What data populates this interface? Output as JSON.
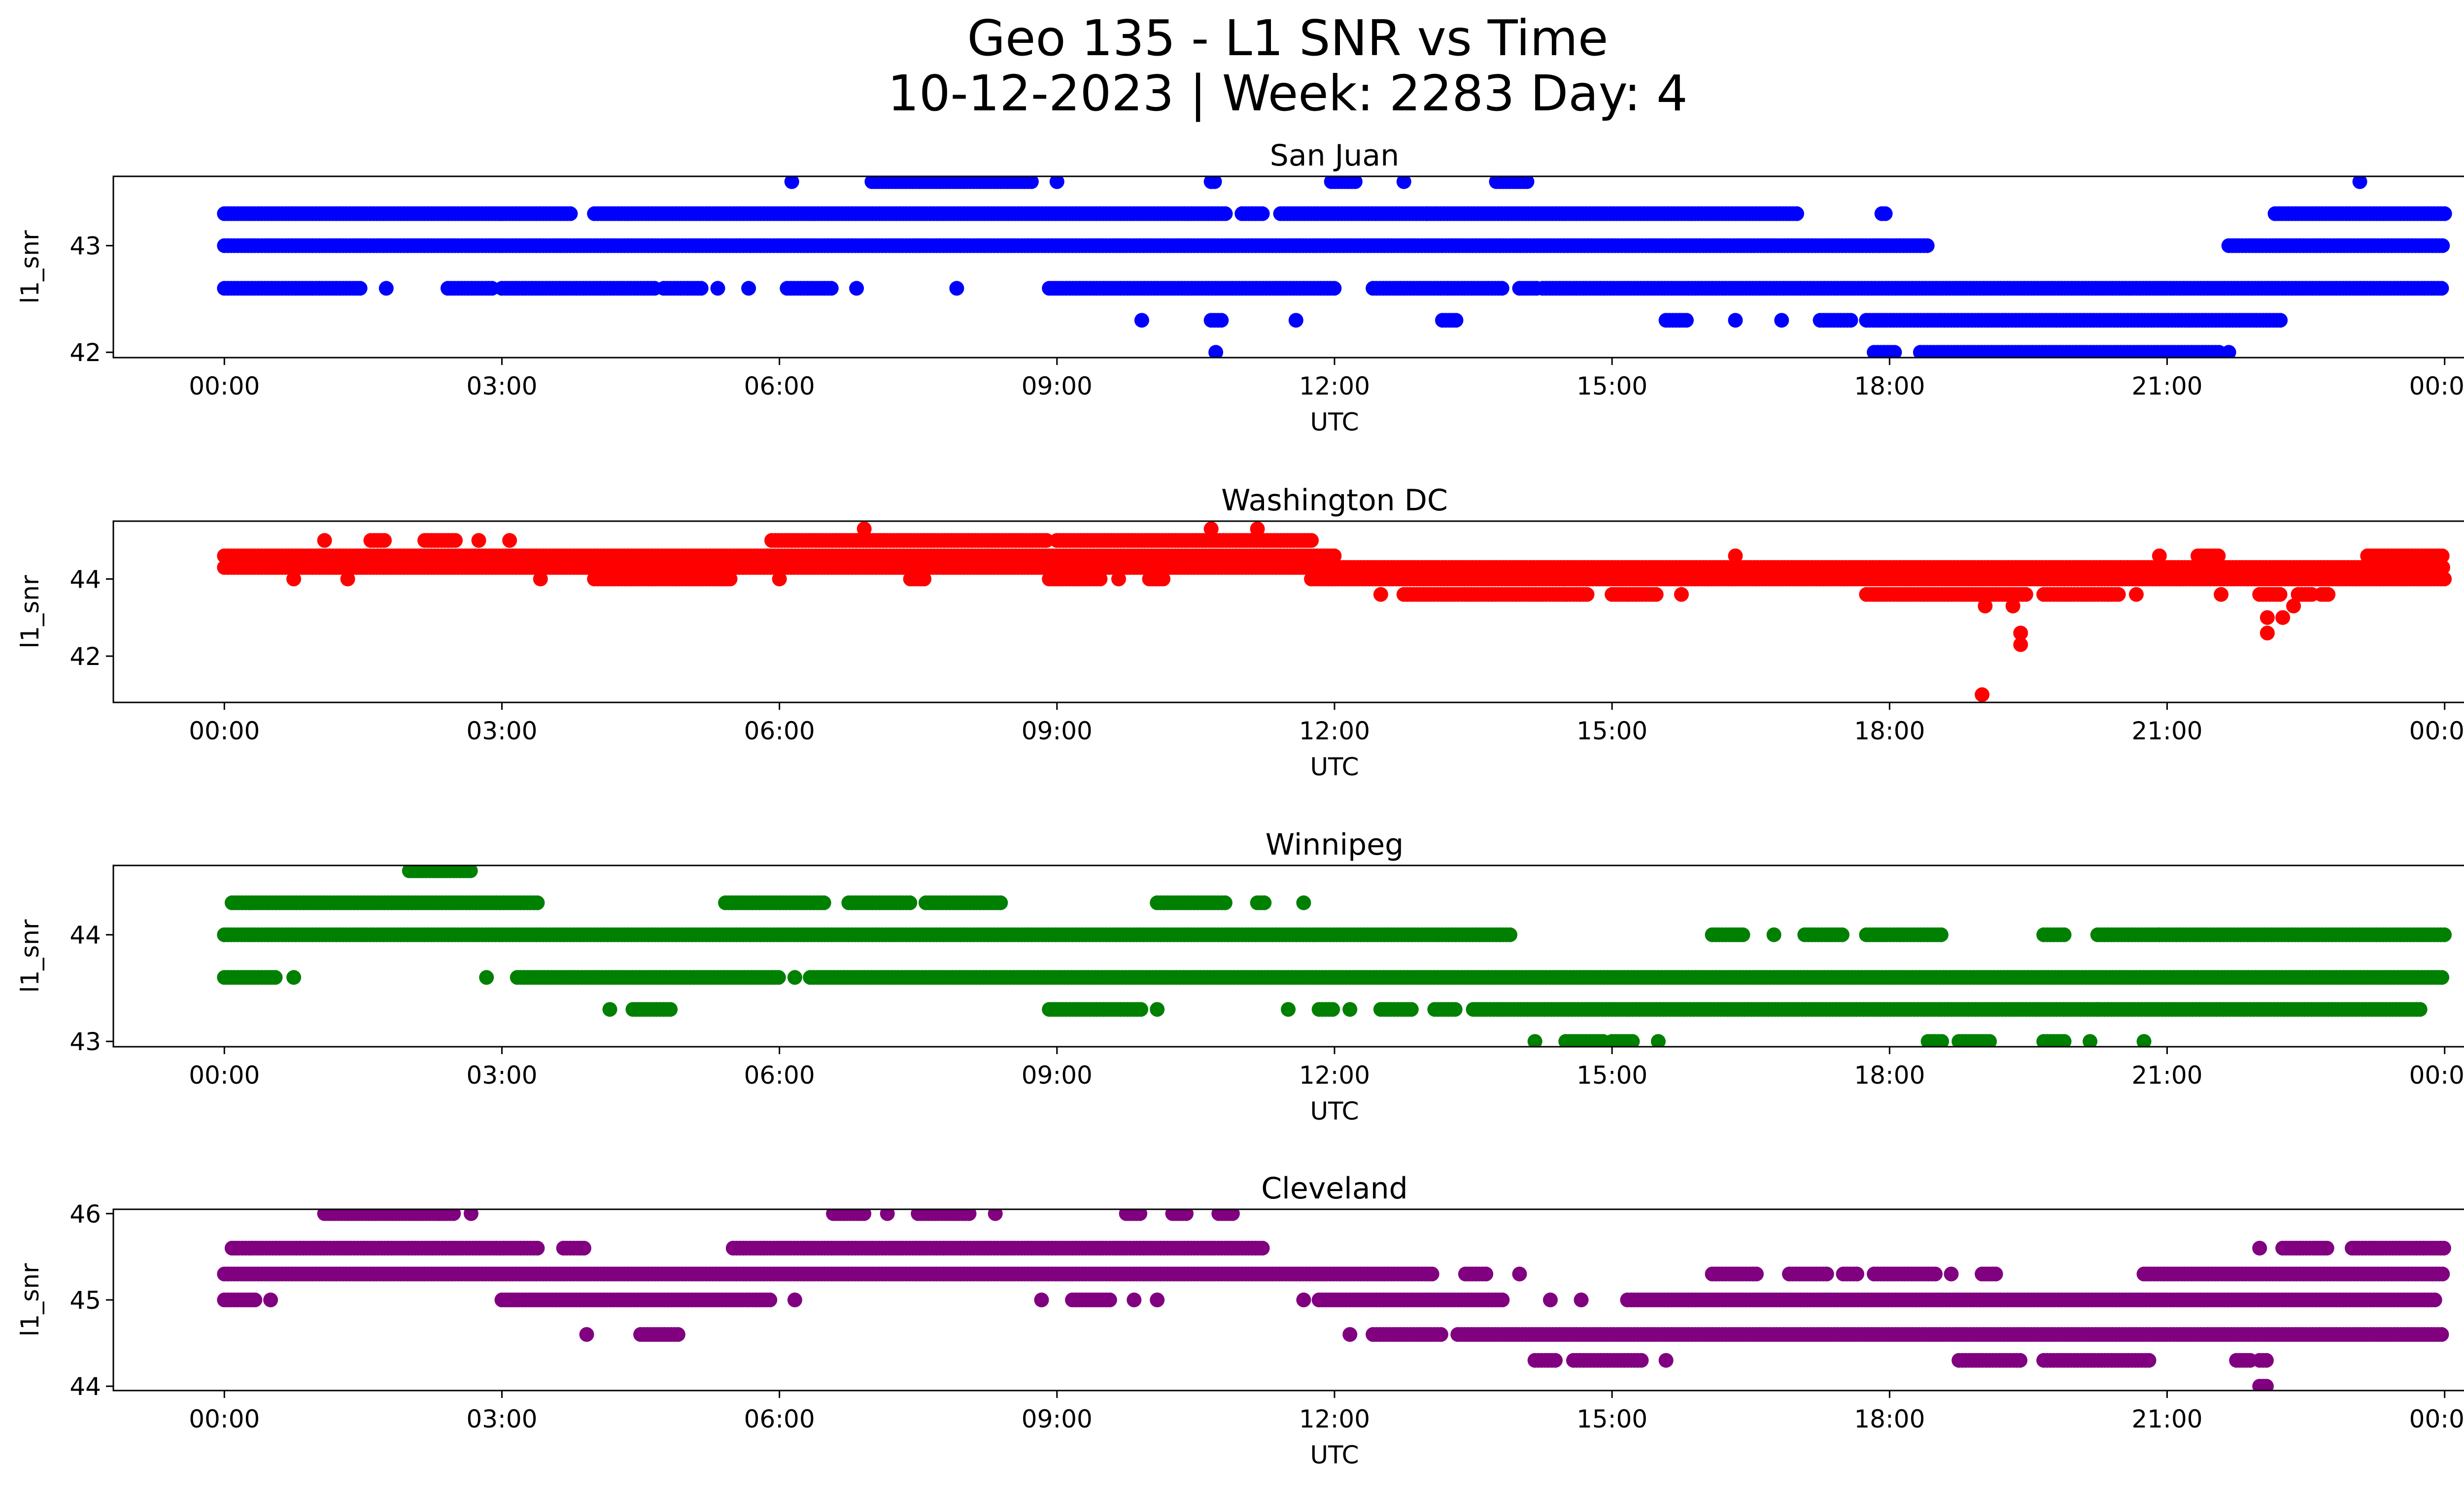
{
  "figure": {
    "title_line1": "Geo 135 - L1 SNR vs Time",
    "title_line2": "10-12-2023 | Week: 2283 Day: 4"
  },
  "chart_data": [
    {
      "type": "scatter",
      "title": "San Juan",
      "xlabel": "UTC",
      "ylabel": "l1_snr",
      "color": "#0000ff",
      "xlim": [
        "00:00",
        "24:00"
      ],
      "x_ticks": [
        "00:00",
        "03:00",
        "06:00",
        "09:00",
        "12:00",
        "15:00",
        "18:00",
        "21:00",
        "00:00"
      ],
      "ylim": [
        41.95,
        43.65
      ],
      "y_ticks": [
        42,
        43
      ],
      "levels": [
        {
          "y": 43.6,
          "runs": [
            [
              "06:08",
              "06:10"
            ],
            [
              "07:00",
              "08:45"
            ],
            [
              "09:00",
              "09:02"
            ],
            [
              "10:40",
              "10:43"
            ],
            [
              "11:58",
              "12:14"
            ],
            [
              "12:45",
              "12:47"
            ],
            [
              "13:45",
              "14:05"
            ],
            [
              "23:05",
              "23:07"
            ]
          ]
        },
        {
          "y": 43.3,
          "runs": [
            [
              "00:00",
              "03:45"
            ],
            [
              "04:00",
              "10:50"
            ],
            [
              "11:00",
              "11:15"
            ],
            [
              "11:25",
              "13:00"
            ],
            [
              "13:00",
              "17:00"
            ],
            [
              "17:55",
              "17:58"
            ],
            [
              "22:10",
              "24:00"
            ]
          ]
        },
        {
          "y": 43.0,
          "runs": [
            [
              "00:00",
              "18:25"
            ],
            [
              "21:40",
              "24:00"
            ]
          ]
        },
        {
          "y": 42.6,
          "runs": [
            [
              "00:00",
              "01:30"
            ],
            [
              "01:45",
              "01:47"
            ],
            [
              "02:25",
              "02:55"
            ],
            [
              "03:00",
              "04:40"
            ],
            [
              "04:45",
              "05:10"
            ],
            [
              "05:20",
              "05:22"
            ],
            [
              "05:40",
              "05:42"
            ],
            [
              "06:05",
              "06:35"
            ],
            [
              "06:50",
              "06:52"
            ],
            [
              "07:55",
              "07:57"
            ],
            [
              "08:55",
              "12:00"
            ],
            [
              "12:25",
              "13:50"
            ],
            [
              "14:00",
              "14:12"
            ],
            [
              "14:15",
              "24:00"
            ]
          ]
        },
        {
          "y": 42.3,
          "runs": [
            [
              "09:55",
              "09:57"
            ],
            [
              "10:40",
              "10:47"
            ],
            [
              "11:35",
              "11:37"
            ],
            [
              "13:10",
              "13:20"
            ],
            [
              "15:35",
              "15:50"
            ],
            [
              "16:20",
              "16:22"
            ],
            [
              "16:50",
              "16:52"
            ],
            [
              "17:15",
              "17:35"
            ],
            [
              "17:45",
              "22:15"
            ]
          ]
        },
        {
          "y": 42.0,
          "runs": [
            [
              "10:43",
              "10:45"
            ],
            [
              "17:50",
              "18:05"
            ],
            [
              "18:20",
              "21:35"
            ],
            [
              "21:40",
              "21:42"
            ]
          ]
        }
      ],
      "outliers": []
    },
    {
      "type": "scatter",
      "title": "Washington DC",
      "xlabel": "UTC",
      "ylabel": "l1_snr",
      "color": "#ff0000",
      "xlim": [
        "00:00",
        "24:00"
      ],
      "x_ticks": [
        "00:00",
        "03:00",
        "06:00",
        "09:00",
        "12:00",
        "15:00",
        "18:00",
        "21:00",
        "00:00"
      ],
      "ylim": [
        40.8,
        45.5
      ],
      "y_ticks": [
        42,
        44
      ],
      "levels": [
        {
          "y": 45.3,
          "runs": [
            [
              "06:55",
              "06:57"
            ],
            [
              "10:40",
              "10:42"
            ],
            [
              "11:10",
              "11:12"
            ]
          ]
        },
        {
          "y": 45.0,
          "runs": [
            [
              "01:05",
              "01:07"
            ],
            [
              "01:35",
              "01:45"
            ],
            [
              "02:10",
              "02:30"
            ],
            [
              "02:45",
              "02:47"
            ],
            [
              "03:05",
              "03:07"
            ],
            [
              "05:55",
              "08:55"
            ],
            [
              "09:00",
              "11:45"
            ]
          ]
        },
        {
          "y": 44.6,
          "runs": [
            [
              "00:00",
              "05:15"
            ],
            [
              "05:15",
              "12:00"
            ],
            [
              "16:20",
              "16:22"
            ],
            [
              "20:55",
              "20:57"
            ],
            [
              "21:20",
              "21:35"
            ],
            [
              "23:10",
              "24:00"
            ]
          ]
        },
        {
          "y": 44.3,
          "runs": [
            [
              "00:00",
              "24:00"
            ]
          ]
        },
        {
          "y": 44.0,
          "runs": [
            [
              "00:45",
              "00:47"
            ],
            [
              "01:20",
              "01:22"
            ],
            [
              "03:25",
              "03:27"
            ],
            [
              "04:00",
              "05:30"
            ],
            [
              "06:00",
              "06:02"
            ],
            [
              "07:25",
              "07:35"
            ],
            [
              "08:55",
              "09:30"
            ],
            [
              "09:40",
              "09:42"
            ],
            [
              "10:00",
              "10:10"
            ],
            [
              "11:45",
              "24:00"
            ]
          ]
        },
        {
          "y": 43.6,
          "runs": [
            [
              "12:30",
              "12:32"
            ],
            [
              "12:45",
              "14:45"
            ],
            [
              "15:00",
              "15:30"
            ],
            [
              "15:45",
              "15:47"
            ],
            [
              "17:45",
              "19:30"
            ],
            [
              "19:40",
              "20:30"
            ],
            [
              "20:40",
              "20:42"
            ],
            [
              "21:35",
              "21:37"
            ],
            [
              "22:00",
              "22:15"
            ],
            [
              "22:25",
              "22:35"
            ],
            [
              "22:40",
              "22:45"
            ]
          ]
        }
      ],
      "outliers": [
        {
          "x": "19:00",
          "y": 41.0
        },
        {
          "x": "19:25",
          "y": 42.3
        },
        {
          "x": "19:25",
          "y": 42.6
        },
        {
          "x": "19:20",
          "y": 43.3
        },
        {
          "x": "19:02",
          "y": 43.3
        },
        {
          "x": "22:05",
          "y": 42.6
        },
        {
          "x": "22:05",
          "y": 43.0
        },
        {
          "x": "22:15",
          "y": 43.0
        },
        {
          "x": "22:22",
          "y": 43.3
        }
      ]
    },
    {
      "type": "scatter",
      "title": "Winnipeg",
      "xlabel": "UTC",
      "ylabel": "l1_snr",
      "color": "#008000",
      "xlim": [
        "00:00",
        "24:00"
      ],
      "x_ticks": [
        "00:00",
        "03:00",
        "06:00",
        "09:00",
        "12:00",
        "15:00",
        "18:00",
        "21:00",
        "00:00"
      ],
      "ylim": [
        42.95,
        44.65
      ],
      "y_ticks": [
        43,
        44
      ],
      "levels": [
        {
          "y": 44.6,
          "runs": [
            [
              "02:00",
              "02:40"
            ]
          ]
        },
        {
          "y": 44.3,
          "runs": [
            [
              "00:05",
              "03:25"
            ],
            [
              "05:25",
              "06:30"
            ],
            [
              "06:45",
              "07:25"
            ],
            [
              "07:35",
              "08:25"
            ],
            [
              "10:05",
              "10:50"
            ],
            [
              "11:10",
              "11:15"
            ],
            [
              "11:40",
              "11:42"
            ]
          ]
        },
        {
          "y": 44.0,
          "runs": [
            [
              "00:00",
              "13:55"
            ],
            [
              "16:05",
              "16:25"
            ],
            [
              "16:45",
              "16:47"
            ],
            [
              "17:05",
              "17:30"
            ],
            [
              "17:45",
              "18:35"
            ],
            [
              "19:40",
              "19:55"
            ],
            [
              "20:15",
              "20:55"
            ],
            [
              "20:55",
              "24:00"
            ]
          ]
        },
        {
          "y": 43.6,
          "runs": [
            [
              "00:00",
              "00:35"
            ],
            [
              "00:45",
              "00:47"
            ],
            [
              "02:50",
              "02:52"
            ],
            [
              "03:10",
              "06:00"
            ],
            [
              "06:10",
              "06:12"
            ],
            [
              "06:20",
              "24:00"
            ]
          ]
        },
        {
          "y": 43.3,
          "runs": [
            [
              "04:10",
              "04:12"
            ],
            [
              "04:25",
              "04:50"
            ],
            [
              "08:55",
              "09:55"
            ],
            [
              "10:05",
              "10:07"
            ],
            [
              "11:30",
              "11:32"
            ],
            [
              "11:50",
              "12:00"
            ],
            [
              "12:10",
              "12:12"
            ],
            [
              "12:30",
              "12:50"
            ],
            [
              "13:05",
              "13:20"
            ],
            [
              "13:30",
              "20:15"
            ],
            [
              "20:15",
              "23:45"
            ]
          ]
        },
        {
          "y": 43.0,
          "runs": [
            [
              "14:10",
              "14:12"
            ],
            [
              "14:30",
              "14:55"
            ],
            [
              "15:00",
              "15:15"
            ],
            [
              "15:30",
              "15:32"
            ],
            [
              "18:25",
              "18:35"
            ],
            [
              "18:45",
              "19:05"
            ],
            [
              "19:40",
              "19:55"
            ],
            [
              "20:10",
              "20:12"
            ],
            [
              "20:45",
              "20:47"
            ]
          ]
        }
      ],
      "outliers": []
    },
    {
      "type": "scatter",
      "title": "Cleveland",
      "xlabel": "UTC",
      "ylabel": "l1_snr",
      "color": "#800080",
      "xlim": [
        "00:00",
        "24:00"
      ],
      "x_ticks": [
        "00:00",
        "03:00",
        "06:00",
        "09:00",
        "12:00",
        "15:00",
        "18:00",
        "21:00",
        "00:00"
      ],
      "ylim": [
        43.95,
        46.05
      ],
      "y_ticks": [
        44,
        45,
        46
      ],
      "levels": [
        {
          "y": 46.0,
          "runs": [
            [
              "01:05",
              "02:30"
            ],
            [
              "02:40",
              "02:42"
            ],
            [
              "06:35",
              "06:55"
            ],
            [
              "07:10",
              "07:12"
            ],
            [
              "07:30",
              "08:05"
            ],
            [
              "08:20",
              "08:22"
            ],
            [
              "09:45",
              "09:55"
            ],
            [
              "10:15",
              "10:25"
            ],
            [
              "10:45",
              "10:55"
            ]
          ]
        },
        {
          "y": 45.6,
          "runs": [
            [
              "00:05",
              "03:25"
            ],
            [
              "03:40",
              "03:55"
            ],
            [
              "05:30",
              "11:15"
            ],
            [
              "22:00",
              "22:02"
            ],
            [
              "22:15",
              "22:45"
            ],
            [
              "23:00",
              "24:00"
            ]
          ]
        },
        {
          "y": 45.3,
          "runs": [
            [
              "00:00",
              "13:05"
            ],
            [
              "13:25",
              "13:40"
            ],
            [
              "14:00",
              "14:02"
            ],
            [
              "16:05",
              "16:35"
            ],
            [
              "16:55",
              "17:20"
            ],
            [
              "17:30",
              "17:40"
            ],
            [
              "17:50",
              "18:30"
            ],
            [
              "18:40",
              "18:42"
            ],
            [
              "19:00",
              "19:10"
            ],
            [
              "20:45",
              "24:00"
            ]
          ]
        },
        {
          "y": 45.0,
          "runs": [
            [
              "00:00",
              "00:20"
            ],
            [
              "00:30",
              "00:32"
            ],
            [
              "03:00",
              "05:55"
            ],
            [
              "06:10",
              "06:12"
            ],
            [
              "08:50",
              "08:52"
            ],
            [
              "09:10",
              "09:35"
            ],
            [
              "09:50",
              "09:52"
            ],
            [
              "10:05",
              "10:07"
            ],
            [
              "11:40",
              "11:42"
            ],
            [
              "11:50",
              "13:50"
            ],
            [
              "14:20",
              "14:22"
            ],
            [
              "14:40",
              "14:42"
            ],
            [
              "15:10",
              "23:55"
            ]
          ]
        },
        {
          "y": 44.6,
          "runs": [
            [
              "03:55",
              "03:57"
            ],
            [
              "04:30",
              "04:55"
            ],
            [
              "12:10",
              "12:12"
            ],
            [
              "12:25",
              "13:10"
            ],
            [
              "13:20",
              "24:00"
            ]
          ]
        },
        {
          "y": 44.3,
          "runs": [
            [
              "14:10",
              "14:25"
            ],
            [
              "14:35",
              "15:20"
            ],
            [
              "15:35",
              "15:37"
            ],
            [
              "18:45",
              "19:25"
            ],
            [
              "19:40",
              "20:50"
            ],
            [
              "21:45",
              "21:55"
            ],
            [
              "22:00",
              "22:05"
            ]
          ]
        },
        {
          "y": 44.0,
          "runs": [
            [
              "22:00",
              "22:05"
            ]
          ]
        }
      ],
      "outliers": []
    }
  ]
}
